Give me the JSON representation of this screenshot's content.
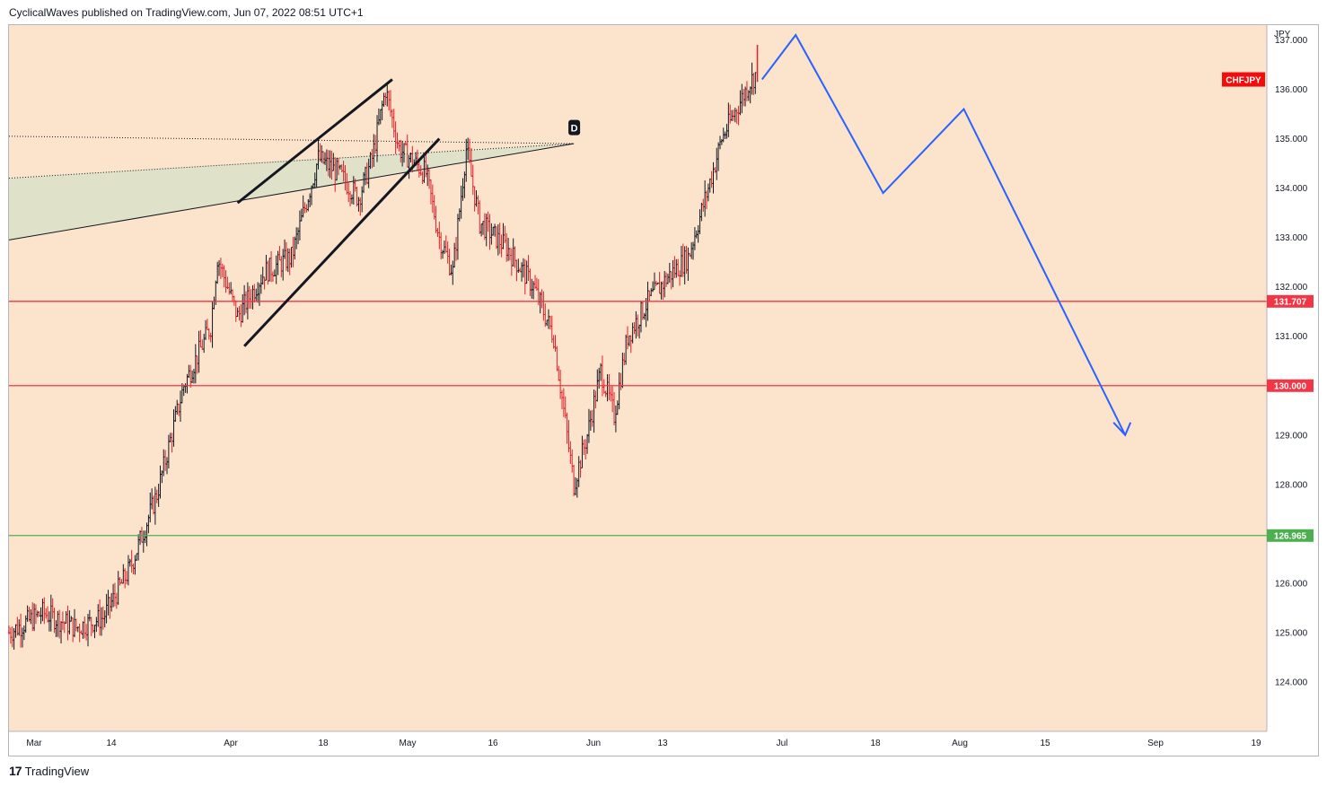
{
  "header": {
    "published_text": "CyclicalWaves published on TradingView.com, Jun 07, 2022 08:51 UTC+1"
  },
  "footer": {
    "logo_mark": "17",
    "brand": "TradingView"
  },
  "colors": {
    "plot_bg": "#fbe3cc",
    "up_candle": "#131722",
    "down_candle": "#e0202a",
    "resistance": "#f23645",
    "support": "#4caf50",
    "projection": "#2962ff",
    "triangle_fill": "#dde2c8",
    "symbol_tag": "#f20c0c"
  },
  "chart_data": {
    "type": "candlestick",
    "symbol": "CHFJPY",
    "currency_label": "JPY",
    "y_axis": {
      "min": 123.0,
      "max": 137.3,
      "ticks": [
        "124.000",
        "125.000",
        "126.000",
        "127.000",
        "128.000",
        "129.000",
        "130.000",
        "131.000",
        "132.000",
        "133.000",
        "134.000",
        "135.000",
        "136.000",
        "137.000"
      ]
    },
    "x_axis": {
      "labels": [
        "Mar",
        "14",
        "Apr",
        "18",
        "May",
        "16",
        "Jun",
        "13",
        "Jul",
        "18",
        "Aug",
        "15",
        "Sep",
        "19"
      ]
    },
    "price_anchors": [
      {
        "d": 0,
        "p": 125.0
      },
      {
        "d": 5,
        "p": 125.4
      },
      {
        "d": 10,
        "p": 125.1
      },
      {
        "d": 14,
        "p": 125.3
      },
      {
        "d": 18,
        "p": 126.3
      },
      {
        "d": 22,
        "p": 127.8
      },
      {
        "d": 26,
        "p": 130.0
      },
      {
        "d": 30,
        "p": 131.2
      },
      {
        "d": 31,
        "p": 132.6
      },
      {
        "d": 34,
        "p": 131.4
      },
      {
        "d": 38,
        "p": 132.3
      },
      {
        "d": 42,
        "p": 132.6
      },
      {
        "d": 46,
        "p": 134.6
      },
      {
        "d": 49,
        "p": 134.3
      },
      {
        "d": 52,
        "p": 133.8
      },
      {
        "d": 54,
        "p": 134.6
      },
      {
        "d": 56,
        "p": 136.0
      },
      {
        "d": 58,
        "p": 134.8
      },
      {
        "d": 62,
        "p": 134.3
      },
      {
        "d": 64,
        "p": 133.0
      },
      {
        "d": 66,
        "p": 132.3
      },
      {
        "d": 68,
        "p": 134.8
      },
      {
        "d": 70,
        "p": 133.3
      },
      {
        "d": 74,
        "p": 132.8
      },
      {
        "d": 78,
        "p": 132.0
      },
      {
        "d": 81,
        "p": 131.0
      },
      {
        "d": 84,
        "p": 128.0
      },
      {
        "d": 86,
        "p": 129.0
      },
      {
        "d": 88,
        "p": 130.3
      },
      {
        "d": 90,
        "p": 129.4
      },
      {
        "d": 92,
        "p": 131.0
      },
      {
        "d": 95,
        "p": 131.7
      },
      {
        "d": 98,
        "p": 132.2
      },
      {
        "d": 101,
        "p": 132.6
      },
      {
        "d": 104,
        "p": 134.0
      },
      {
        "d": 106,
        "p": 135.0
      },
      {
        "d": 110,
        "p": 136.1
      },
      {
        "d": 111,
        "p": 136.3
      }
    ],
    "levels": [
      {
        "label": "131.707",
        "value": 131.707,
        "kind": "resistance"
      },
      {
        "label": "130.000",
        "value": 130.0,
        "kind": "resistance"
      },
      {
        "label": "126.965",
        "value": 126.965,
        "kind": "support"
      }
    ],
    "last_price_label": "CHFJPY",
    "last_price_value": 136.2,
    "wedge_label": "D",
    "projection_path": [
      {
        "d": 112,
        "p": 136.2
      },
      {
        "d": 117,
        "p": 137.1
      },
      {
        "d": 130,
        "p": 133.9
      },
      {
        "d": 142,
        "p": 135.6
      },
      {
        "d": 166,
        "p": 129.0
      }
    ],
    "wedge_upper": [
      {
        "d": 34,
        "p": 133.7
      },
      {
        "d": 57,
        "p": 136.2
      }
    ],
    "wedge_lower": [
      {
        "d": 35,
        "p": 130.8
      },
      {
        "d": 64,
        "p": 135.0
      }
    ],
    "triangle_top": [
      {
        "d": 0,
        "p": 135.05
      },
      {
        "d": 84,
        "p": 134.9
      }
    ],
    "triangle_bottom": [
      {
        "d": 0,
        "p": 132.95
      },
      {
        "d": 84,
        "p": 134.9
      }
    ],
    "triangle_upper_dotted_bottom": [
      {
        "d": 0,
        "p": 134.2
      },
      {
        "d": 84,
        "p": 134.9
      }
    ]
  }
}
